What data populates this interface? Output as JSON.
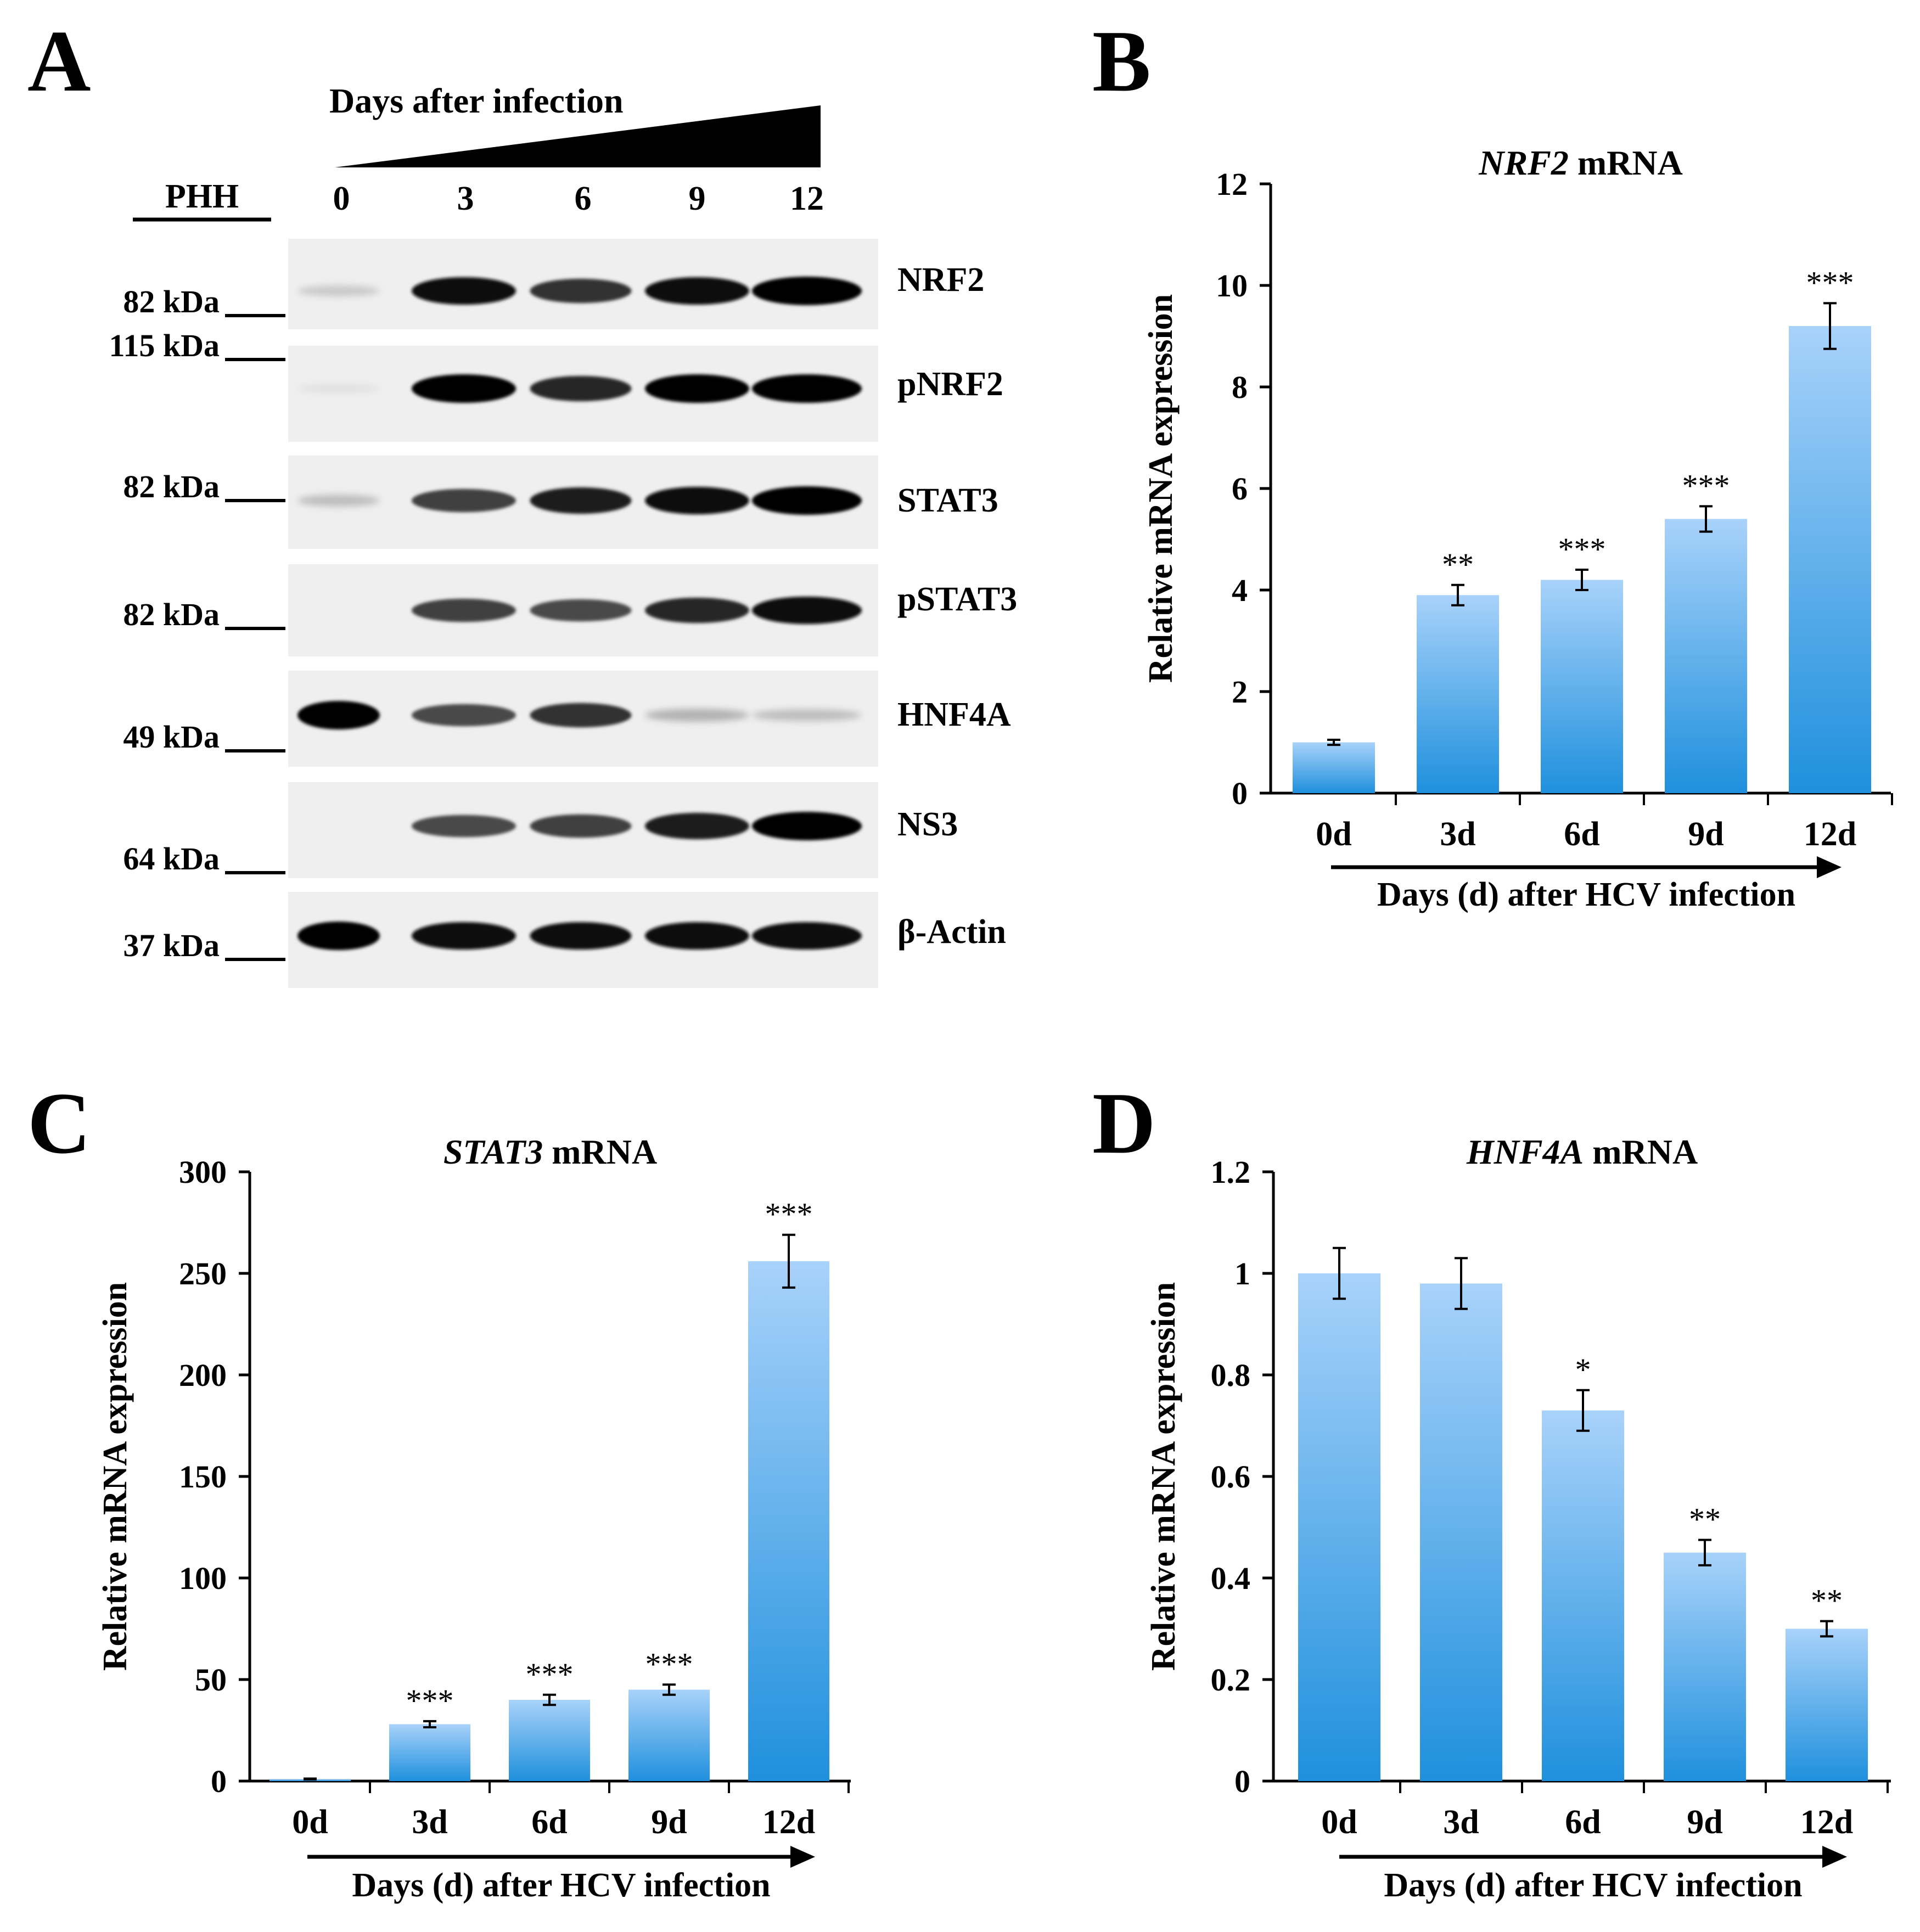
{
  "panel_a": {
    "letter": "A",
    "header": "Days after infection",
    "cell_label": "PHH",
    "lanes": [
      "0",
      "3",
      "6",
      "9",
      "12"
    ],
    "blots": [
      {
        "name": "NRF2",
        "marker": "82 kDa",
        "levels": [
          0.15,
          0.95,
          0.8,
          0.95,
          1.0
        ]
      },
      {
        "name": "pNRF2",
        "marker": "115 kDa",
        "levels": [
          0.05,
          1.0,
          0.85,
          1.0,
          1.0
        ]
      },
      {
        "name": "STAT3",
        "marker": "82 kDa",
        "levels": [
          0.2,
          0.75,
          0.9,
          0.95,
          1.0
        ]
      },
      {
        "name": "pSTAT3",
        "marker": "82 kDa",
        "levels": [
          0.0,
          0.75,
          0.7,
          0.85,
          0.95
        ]
      },
      {
        "name": "HNF4A",
        "marker": "49 kDa",
        "levels": [
          1.0,
          0.7,
          0.8,
          0.25,
          0.2
        ]
      },
      {
        "name": "NS3",
        "marker": "64 kDa",
        "levels": [
          0.0,
          0.7,
          0.75,
          0.9,
          1.0
        ]
      },
      {
        "name": "β-Actin",
        "marker": "37 kDa",
        "levels": [
          1.0,
          0.95,
          0.95,
          0.95,
          0.95
        ]
      }
    ]
  },
  "colors": {
    "bar_top": "#a8d2fa",
    "bar_bottom": "#1f90dd",
    "axis": "#000000"
  },
  "chart_data": [
    {
      "panel": "B",
      "type": "bar",
      "title_italic": "NRF2",
      "title_rest": " mRNA",
      "ylabel": "Relative mRNA expression",
      "xlabel": "Days (d) after HCV infection",
      "categories": [
        "0d",
        "3d",
        "6d",
        "9d",
        "12d"
      ],
      "values": [
        1.0,
        3.9,
        4.2,
        5.4,
        9.2
      ],
      "errors": [
        0.05,
        0.2,
        0.2,
        0.25,
        0.45
      ],
      "significance": [
        "",
        "**",
        "***",
        "***",
        "***"
      ],
      "ylim": [
        0,
        12
      ],
      "yticks": [
        "0",
        "2",
        "4",
        "6",
        "8",
        "10",
        "12"
      ]
    },
    {
      "panel": "C",
      "type": "bar",
      "title_italic": "STAT3",
      "title_rest": " mRNA",
      "ylabel": "Relative mRNA expression",
      "xlabel": "Days (d) after HCV infection",
      "categories": [
        "0d",
        "3d",
        "6d",
        "9d",
        "12d"
      ],
      "values": [
        1.0,
        28,
        40,
        45,
        256
      ],
      "errors": [
        0.2,
        1.5,
        2.5,
        2.5,
        13
      ],
      "significance": [
        "",
        "***",
        "***",
        "***",
        "***"
      ],
      "ylim": [
        0,
        300
      ],
      "yticks": [
        "0",
        "50",
        "100",
        "150",
        "200",
        "250",
        "300"
      ]
    },
    {
      "panel": "D",
      "type": "bar",
      "title_italic": "HNF4A",
      "title_rest": " mRNA",
      "ylabel": "Relative mRNA expression",
      "xlabel": "Days (d) after HCV infection",
      "categories": [
        "0d",
        "3d",
        "6d",
        "9d",
        "12d"
      ],
      "values": [
        1.0,
        0.98,
        0.73,
        0.45,
        0.3
      ],
      "errors": [
        0.05,
        0.05,
        0.04,
        0.025,
        0.015
      ],
      "significance": [
        "",
        "",
        "*",
        "**",
        "**"
      ],
      "ylim": [
        0,
        1.2
      ],
      "yticks": [
        "0",
        "0.2",
        "0.4",
        "0.6",
        "0.8",
        "1",
        "1.2"
      ]
    }
  ]
}
